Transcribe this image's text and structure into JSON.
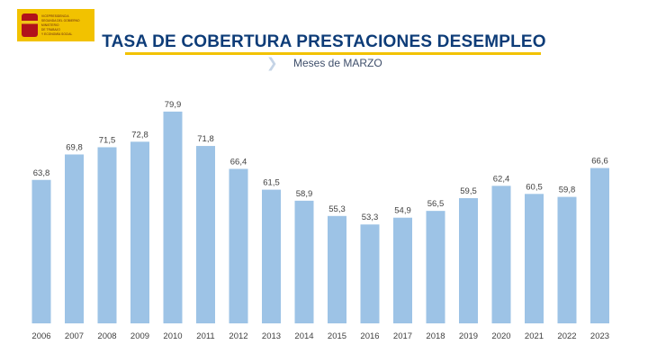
{
  "logo": {
    "lines": [
      "VICEPRESIDENCIA",
      "SEGUNDA DEL GOBIERNO",
      "MINISTERIO",
      "DE TRABAJO",
      "Y ECONOMÍA SOCIAL"
    ]
  },
  "header": {
    "title": "TASA DE COBERTURA PRESTACIONES DESEMPLEO",
    "subtitle": "Meses de MARZO"
  },
  "colors": {
    "bar": "#9dc3e6",
    "title": "#0d3c78",
    "underline": "#f2c200"
  },
  "chart_data": {
    "type": "bar",
    "title": "TASA DE COBERTURA PRESTACIONES DESEMPLEO",
    "subtitle": "Meses de MARZO",
    "categories": [
      "2006",
      "2007",
      "2008",
      "2009",
      "2010",
      "2011",
      "2012",
      "2013",
      "2014",
      "2015",
      "2016",
      "2017",
      "2018",
      "2019",
      "2020",
      "2021",
      "2022",
      "2023"
    ],
    "values": [
      63.8,
      69.8,
      71.5,
      72.8,
      79.9,
      71.8,
      66.4,
      61.5,
      58.9,
      55.3,
      53.3,
      54.9,
      56.5,
      59.5,
      62.4,
      60.5,
      59.8,
      66.6
    ],
    "value_labels": [
      "63,8",
      "69,8",
      "71,5",
      "72,8",
      "79,9",
      "71,8",
      "66,4",
      "61,5",
      "58,9",
      "55,3",
      "53,3",
      "54,9",
      "56,5",
      "59,5",
      "62,4",
      "60,5",
      "59,8",
      "66,6"
    ],
    "xlabel": "",
    "ylabel": "",
    "ylim": [
      30,
      82
    ],
    "grid": false,
    "data_labels": "above bars"
  }
}
